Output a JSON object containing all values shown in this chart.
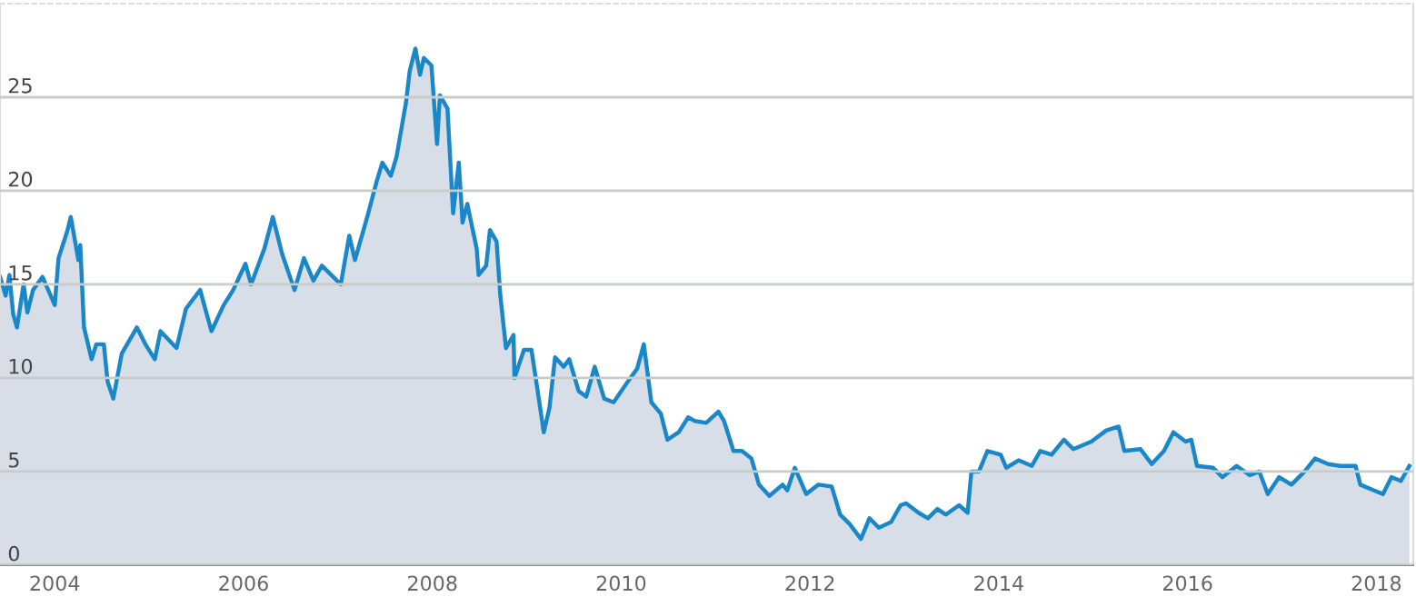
{
  "chart_data": {
    "type": "area",
    "x": [
      2003.42,
      2003.48,
      2003.52,
      2003.56,
      2003.6,
      2003.67,
      2003.71,
      2003.77,
      2003.87,
      2004.0,
      2004.04,
      2004.13,
      2004.17,
      2004.25,
      2004.27,
      2004.31,
      2004.39,
      2004.44,
      2004.52,
      2004.56,
      2004.62,
      2004.71,
      2004.87,
      2004.96,
      2005.06,
      2005.12,
      2005.29,
      2005.39,
      2005.54,
      2005.66,
      2005.79,
      2005.89,
      2006.02,
      2006.08,
      2006.22,
      2006.31,
      2006.41,
      2006.54,
      2006.64,
      2006.74,
      2006.83,
      2007.03,
      2007.12,
      2007.18,
      2007.31,
      2007.41,
      2007.47,
      2007.56,
      2007.62,
      2007.72,
      2007.76,
      2007.82,
      2007.87,
      2007.91,
      2007.99,
      2008.05,
      2008.08,
      2008.16,
      2008.22,
      2008.28,
      2008.32,
      2008.37,
      2008.47,
      2008.49,
      2008.57,
      2008.61,
      2008.68,
      2008.72,
      2008.78,
      2008.86,
      2008.87,
      2008.97,
      2009.05,
      2009.11,
      2009.18,
      2009.24,
      2009.3,
      2009.39,
      2009.45,
      2009.55,
      2009.63,
      2009.72,
      2009.82,
      2009.92,
      2010.07,
      2010.17,
      2010.24,
      2010.32,
      2010.42,
      2010.49,
      2010.61,
      2010.71,
      2010.78,
      2010.9,
      2011.03,
      2011.09,
      2011.19,
      2011.28,
      2011.38,
      2011.46,
      2011.57,
      2011.71,
      2011.76,
      2011.84,
      2011.96,
      2012.09,
      2012.23,
      2012.32,
      2012.42,
      2012.54,
      2012.63,
      2012.73,
      2012.86,
      2012.96,
      2013.02,
      2013.15,
      2013.25,
      2013.35,
      2013.44,
      2013.58,
      2013.67,
      2013.71,
      2013.79,
      2013.88,
      2014.02,
      2014.08,
      2014.21,
      2014.35,
      2014.44,
      2014.56,
      2014.69,
      2014.79,
      2014.98,
      2015.14,
      2015.27,
      2015.33,
      2015.5,
      2015.62,
      2015.75,
      2015.85,
      2015.98,
      2016.04,
      2016.1,
      2016.27,
      2016.37,
      2016.52,
      2016.66,
      2016.76,
      2016.85,
      2016.97,
      2017.1,
      2017.24,
      2017.35,
      2017.49,
      2017.62,
      2017.78,
      2017.83,
      2017.97,
      2018.07,
      2018.16,
      2018.26,
      2018.35
    ],
    "series": [
      {
        "color": "#1a87c9",
        "values": [
          15.4,
          14.4,
          15.5,
          13.4,
          12.7,
          15.0,
          13.5,
          14.7,
          15.4,
          13.9,
          16.4,
          17.8,
          18.6,
          16.3,
          17.1,
          12.7,
          11.0,
          11.8,
          11.8,
          9.8,
          8.9,
          11.3,
          12.7,
          11.8,
          11.0,
          12.5,
          11.6,
          13.7,
          14.7,
          12.5,
          13.9,
          14.7,
          16.1,
          15.0,
          16.9,
          18.6,
          16.6,
          14.7,
          16.4,
          15.2,
          16.0,
          15.0,
          17.6,
          16.3,
          18.6,
          20.5,
          21.5,
          20.8,
          21.8,
          24.7,
          26.4,
          27.6,
          26.2,
          27.1,
          26.7,
          22.5,
          25.1,
          24.4,
          18.8,
          21.5,
          18.3,
          19.3,
          16.9,
          15.5,
          16.0,
          17.9,
          17.3,
          14.4,
          11.6,
          12.3,
          10.0,
          11.5,
          11.5,
          9.5,
          7.1,
          8.4,
          11.1,
          10.6,
          11.0,
          9.3,
          9.0,
          10.6,
          8.9,
          8.7,
          9.8,
          10.5,
          11.8,
          8.7,
          8.1,
          6.7,
          7.1,
          7.9,
          7.7,
          7.6,
          8.2,
          7.7,
          6.1,
          6.1,
          5.7,
          4.3,
          3.7,
          4.3,
          4.0,
          5.2,
          3.8,
          4.3,
          4.2,
          2.7,
          2.2,
          1.4,
          2.5,
          2.0,
          2.3,
          3.2,
          3.3,
          2.8,
          2.5,
          3.0,
          2.7,
          3.2,
          2.8,
          5.0,
          5.0,
          6.1,
          5.9,
          5.2,
          5.6,
          5.3,
          6.1,
          5.9,
          6.7,
          6.2,
          6.6,
          7.2,
          7.4,
          6.1,
          6.2,
          5.4,
          6.1,
          7.1,
          6.6,
          6.7,
          5.3,
          5.2,
          4.7,
          5.3,
          4.8,
          5.0,
          3.8,
          4.7,
          4.3,
          5.0,
          5.7,
          5.4,
          5.3,
          5.3,
          4.3,
          4.0,
          3.8,
          4.7,
          4.5,
          5.3
        ]
      }
    ],
    "xlim": [
      2003.42,
      2018.39
    ],
    "xticks": [
      2004,
      2006,
      2008,
      2010,
      2012,
      2014,
      2016,
      2018
    ],
    "ylim": [
      0,
      30
    ],
    "yticks": [
      0,
      5,
      10,
      15,
      20,
      25
    ],
    "grid": "y",
    "legend": false
  }
}
